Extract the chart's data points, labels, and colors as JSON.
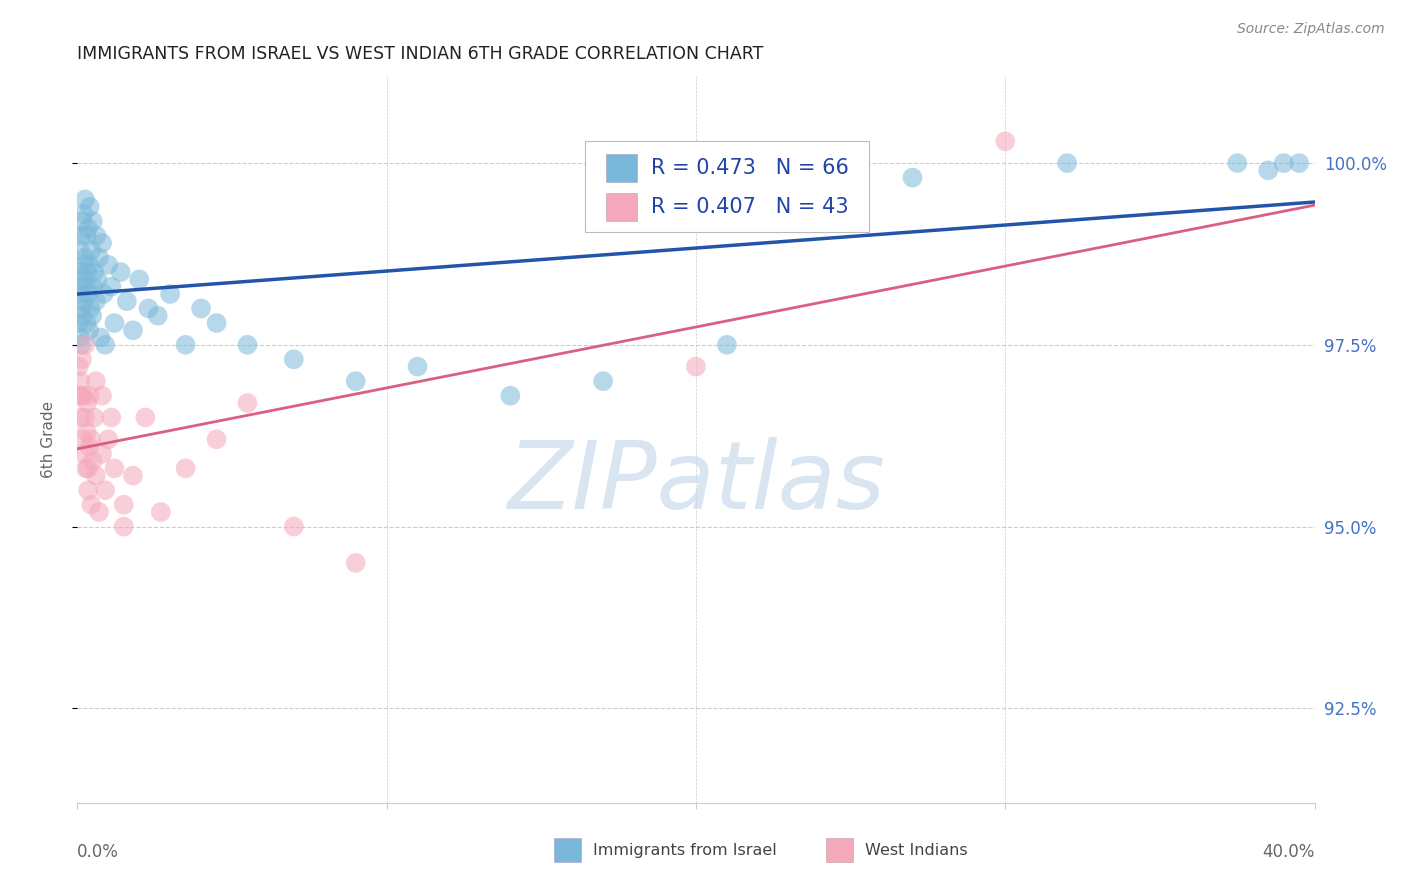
{
  "title": "IMMIGRANTS FROM ISRAEL VS WEST INDIAN 6TH GRADE CORRELATION CHART",
  "source": "Source: ZipAtlas.com",
  "ylabel": "6th Grade",
  "israel_label": "Immigrants from Israel",
  "west_label": "West Indians",
  "israel_color": "#7ab8d9",
  "west_color": "#f4a8bb",
  "blue_line_color": "#2255aa",
  "pink_line_color": "#d96080",
  "israel_R": 0.473,
  "israel_N": 66,
  "west_R": 0.407,
  "west_N": 43,
  "xlim": [
    0.0,
    40.0
  ],
  "ylim": [
    91.2,
    101.2
  ],
  "yticks": [
    92.5,
    95.0,
    97.5,
    100.0
  ],
  "ytick_labels": [
    "92.5%",
    "95.0%",
    "97.5%",
    "100.0%"
  ],
  "grid_color": "#cccccc",
  "title_color": "#222222",
  "right_tick_color": "#4472c4",
  "source_color": "#888888",
  "watermark_text": "ZIPatlas",
  "watermark_color": "#c5d8ea",
  "legend_text_color": "#2244aa",
  "legend_R1": "R = 0.473   N = 66",
  "legend_R2": "R = 0.407   N = 43",
  "israel_x": [
    0.05,
    0.05,
    0.05,
    0.08,
    0.08,
    0.1,
    0.1,
    0.12,
    0.12,
    0.15,
    0.15,
    0.18,
    0.2,
    0.2,
    0.22,
    0.25,
    0.25,
    0.28,
    0.3,
    0.3,
    0.32,
    0.35,
    0.35,
    0.38,
    0.4,
    0.4,
    0.42,
    0.45,
    0.48,
    0.5,
    0.5,
    0.55,
    0.6,
    0.62,
    0.65,
    0.7,
    0.75,
    0.8,
    0.85,
    0.9,
    1.0,
    1.1,
    1.2,
    1.4,
    1.6,
    1.8,
    2.0,
    2.3,
    2.6,
    3.0,
    3.5,
    4.0,
    4.5,
    5.5,
    7.0,
    9.0,
    11.0,
    14.0,
    17.0,
    21.0,
    27.0,
    32.0,
    37.5,
    38.5,
    39.0,
    39.5
  ],
  "israel_y": [
    97.8,
    98.2,
    98.5,
    97.6,
    98.8,
    98.0,
    99.0,
    97.5,
    98.3,
    97.9,
    99.2,
    98.6,
    98.4,
    99.3,
    98.1,
    98.7,
    99.5,
    98.3,
    97.8,
    99.0,
    98.5,
    98.2,
    99.1,
    97.7,
    98.6,
    99.4,
    98.0,
    98.8,
    97.9,
    98.3,
    99.2,
    98.5,
    98.1,
    99.0,
    98.4,
    98.7,
    97.6,
    98.9,
    98.2,
    97.5,
    98.6,
    98.3,
    97.8,
    98.5,
    98.1,
    97.7,
    98.4,
    98.0,
    97.9,
    98.2,
    97.5,
    98.0,
    97.8,
    97.5,
    97.3,
    97.0,
    97.2,
    96.8,
    97.0,
    97.5,
    99.8,
    100.0,
    100.0,
    99.9,
    100.0,
    100.0
  ],
  "west_x": [
    0.05,
    0.08,
    0.1,
    0.12,
    0.15,
    0.18,
    0.2,
    0.22,
    0.25,
    0.28,
    0.3,
    0.32,
    0.35,
    0.38,
    0.4,
    0.45,
    0.5,
    0.55,
    0.6,
    0.7,
    0.8,
    0.9,
    1.0,
    1.2,
    1.5,
    1.8,
    2.2,
    2.7,
    3.5,
    4.5,
    5.5,
    7.0,
    9.0,
    0.15,
    0.25,
    0.35,
    0.45,
    0.6,
    0.8,
    1.1,
    1.5,
    20.0,
    30.0
  ],
  "west_y": [
    97.2,
    96.8,
    97.0,
    96.5,
    97.3,
    96.2,
    96.8,
    96.0,
    96.5,
    95.8,
    96.3,
    96.7,
    95.5,
    96.1,
    96.8,
    95.3,
    95.9,
    96.5,
    95.7,
    95.2,
    96.0,
    95.5,
    96.2,
    95.8,
    95.3,
    95.7,
    96.5,
    95.2,
    95.8,
    96.2,
    96.7,
    95.0,
    94.5,
    96.8,
    97.5,
    95.8,
    96.2,
    97.0,
    96.8,
    96.5,
    95.0,
    97.2,
    100.3
  ]
}
